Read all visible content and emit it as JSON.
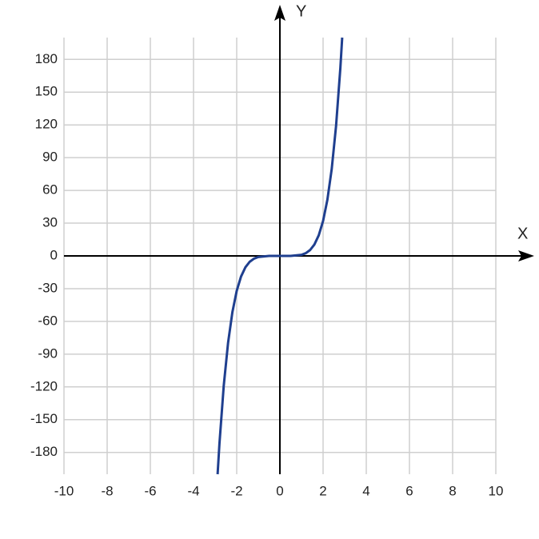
{
  "chart_data": {
    "type": "line",
    "x_label": "X",
    "y_label": "Y",
    "x": [
      -2.885,
      -2.8,
      -2.6,
      -2.4,
      -2.2,
      -2,
      -1.8,
      -1.6,
      -1.4,
      -1.2,
      -1,
      -0.5,
      0,
      0.5,
      1,
      1.2,
      1.4,
      1.6,
      1.8,
      2,
      2.2,
      2.4,
      2.6,
      2.8,
      2.885
    ],
    "series": [
      {
        "color": "#1f3f8f",
        "values": [
          -200,
          -172.1,
          -118.8,
          -79.6,
          -51.5,
          -32,
          -18.9,
          -10.5,
          -5.4,
          -2.5,
          -1,
          -0.03,
          0,
          0.03,
          1,
          2.5,
          5.4,
          10.5,
          18.9,
          32,
          51.5,
          79.6,
          118.8,
          172.1,
          200
        ]
      }
    ],
    "xlim": [
      -10,
      10
    ],
    "ylim": [
      -200,
      200
    ],
    "xticks": [
      -10,
      -8,
      -6,
      -4,
      -2,
      0,
      2,
      4,
      6,
      8,
      10
    ],
    "yticks": [
      -180,
      -150,
      -120,
      -90,
      -60,
      -30,
      0,
      30,
      60,
      90,
      120,
      150,
      180
    ],
    "grid": true
  }
}
